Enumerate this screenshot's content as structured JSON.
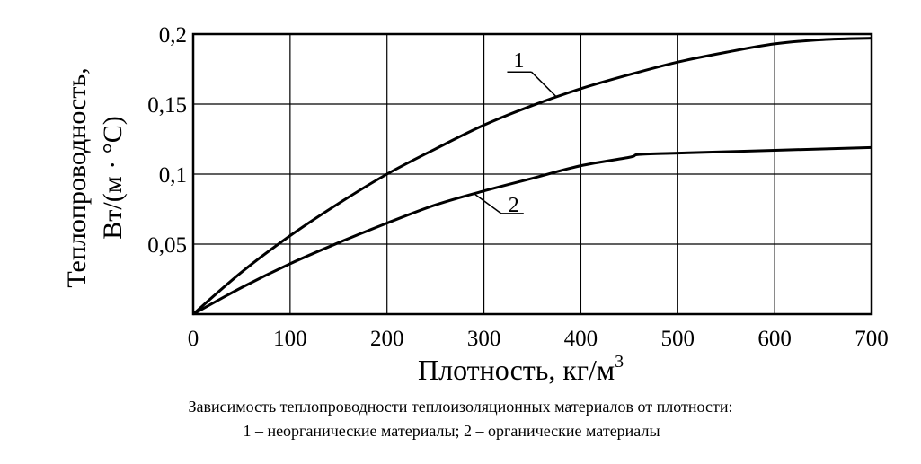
{
  "chart_data": {
    "type": "line",
    "xlabel": "Плотность, кг/м",
    "xlabel_sup": "3",
    "ylabel_line1": "Теплопроводность,",
    "ylabel_line2": "Вт/(м · °С)",
    "xlim": [
      0,
      700
    ],
    "ylim": [
      0,
      0.2
    ],
    "xticks": [
      0,
      100,
      200,
      300,
      400,
      500,
      600,
      700
    ],
    "xtick_labels": [
      "0",
      "100",
      "200",
      "300",
      "400",
      "500",
      "600",
      "700"
    ],
    "yticks": [
      0.05,
      0.1,
      0.15,
      0.2
    ],
    "ytick_labels": [
      "0,05",
      "0,1",
      "0,15",
      "0,2"
    ],
    "grid": true,
    "series": [
      {
        "name": "1",
        "color": "#000000",
        "x": [
          0,
          50,
          100,
          150,
          200,
          250,
          300,
          350,
          400,
          450,
          500,
          550,
          600,
          650,
          700
        ],
        "y": [
          0,
          0.03,
          0.056,
          0.079,
          0.1,
          0.118,
          0.135,
          0.149,
          0.161,
          0.171,
          0.18,
          0.187,
          0.193,
          0.196,
          0.197
        ]
      },
      {
        "name": "2",
        "color": "#000000",
        "x": [
          0,
          50,
          100,
          150,
          200,
          250,
          300,
          350,
          400,
          450,
          460,
          500,
          600,
          700
        ],
        "y": [
          0,
          0.019,
          0.036,
          0.051,
          0.065,
          0.078,
          0.088,
          0.097,
          0.106,
          0.112,
          0.114,
          0.115,
          0.117,
          0.119
        ]
      }
    ],
    "caption_line1": "Зависимость теплопроводности теплоизоляционных материалов от плотности:",
    "caption_line2": "1 – неорганические материалы; 2 – органические материалы"
  }
}
